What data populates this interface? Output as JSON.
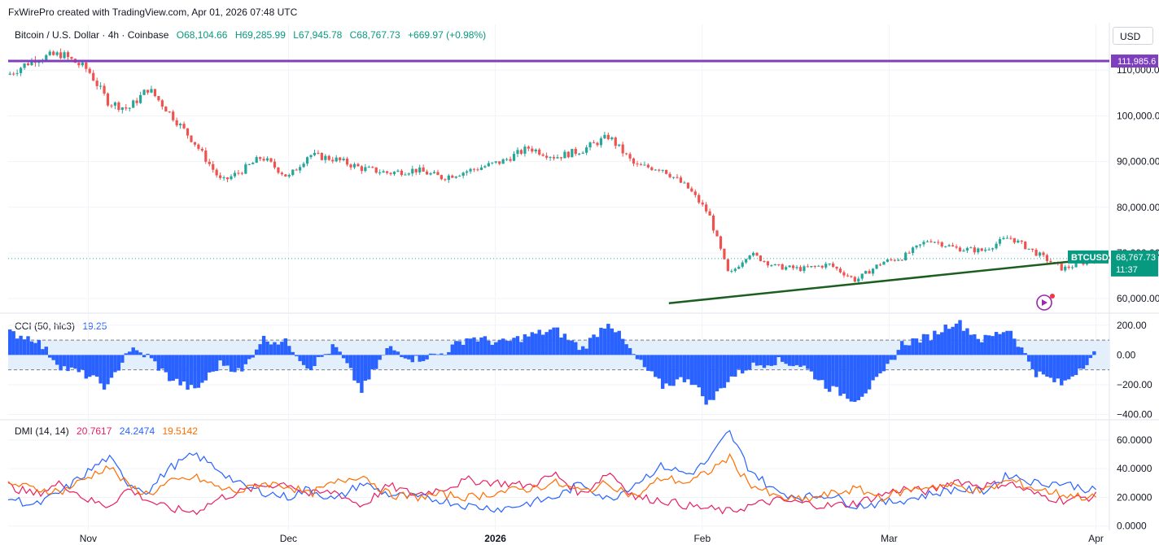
{
  "header": {
    "credit": "FxWirePro created with TradingView.com, Apr 01, 2026 07:48 UTC",
    "currency_button": "USD"
  },
  "symbol_legend": {
    "name": "Bitcoin / U.S. Dollar · 4h · Coinbase",
    "open": "O68,104.66",
    "high": "H69,285.99",
    "low": "L67,945.78",
    "close": "C68,767.73",
    "change": "+669.97 (+0.98%)"
  },
  "cci_legend": {
    "name": "CCI (50, hlc3)",
    "value": "19.25"
  },
  "dmi_legend": {
    "name": "DMI (14, 14)",
    "plus_di": "20.7617",
    "minus_di": "24.2474",
    "adx": "19.5142"
  },
  "colors": {
    "up": "#26a69a",
    "down": "#ef5350",
    "resistance": "#7e3fbf",
    "trendline": "#1b5e20",
    "cci": "#2962ff",
    "cci_band": "#e3f0fb",
    "plus_di": "#e91e63",
    "minus_di": "#2962ff",
    "adx": "#ff6d00",
    "price_label_bg": "#089981"
  },
  "price_tags": {
    "resistance": "111,985.6",
    "symbol": "BTCUSD",
    "last": "68,767.73",
    "countdown": "11:37"
  },
  "chart_data": [
    {
      "type": "candlestick",
      "pane": "price",
      "title": "Bitcoin / U.S. Dollar · 4h · Coinbase",
      "x_labels": [
        "Nov",
        "Dec",
        "2026",
        "Feb",
        "Mar",
        "Apr"
      ],
      "y_ticks": [
        "110,000.00",
        "100,000.00",
        "90,000.00",
        "80,000.00",
        "70,000.00",
        "60,000.00"
      ],
      "y_tick_values": [
        110000,
        100000,
        90000,
        80000,
        70000,
        60000
      ],
      "ylim": [
        57000,
        120000
      ],
      "close_path": {
        "dates": [
          "2025-10-20",
          "2025-10-24",
          "2025-10-28",
          "2025-11-01",
          "2025-11-04",
          "2025-11-07",
          "2025-11-10",
          "2025-11-13",
          "2025-11-17",
          "2025-11-21",
          "2025-11-24",
          "2025-11-27",
          "2025-12-01",
          "2025-12-04",
          "2025-12-08",
          "2025-12-12",
          "2025-12-16",
          "2025-12-20",
          "2025-12-24",
          "2025-12-28",
          "2026-01-02",
          "2026-01-06",
          "2026-01-10",
          "2026-01-14",
          "2026-01-18",
          "2026-01-22",
          "2026-01-26",
          "2026-01-30",
          "2026-02-02",
          "2026-02-05",
          "2026-02-08",
          "2026-02-12",
          "2026-02-16",
          "2026-02-20",
          "2026-02-24",
          "2026-02-28",
          "2026-03-03",
          "2026-03-07",
          "2026-03-11",
          "2026-03-15",
          "2026-03-19",
          "2026-03-23",
          "2026-03-27",
          "2026-04-01"
        ],
        "close": [
          109000,
          112500,
          113500,
          110000,
          103000,
          101500,
          106000,
          101000,
          94000,
          85500,
          88000,
          91000,
          86500,
          91500,
          90500,
          88500,
          87500,
          88200,
          86500,
          88000,
          90000,
          93000,
          91000,
          92500,
          95500,
          89000,
          88500,
          84000,
          78500,
          65000,
          70000,
          67000,
          66500,
          67500,
          64000,
          68000,
          69000,
          73000,
          71000,
          70500,
          73500,
          70000,
          66500,
          68767.73
        ]
      },
      "last_close": 68767.73,
      "annotations": [
        {
          "type": "horizontal_line",
          "y": 111985.6,
          "label": "111,985.6"
        },
        {
          "type": "trendline",
          "from": {
            "date": "2026-01-27",
            "y": 59000
          },
          "to": {
            "date": "2026-04-03",
            "y": 69000
          }
        }
      ]
    },
    {
      "type": "histogram",
      "pane": "cci",
      "name": "CCI (50, hlc3)",
      "y_ticks": [
        "200.00",
        "0.00",
        "−200.00",
        "−400.00"
      ],
      "y_tick_values": [
        200,
        0,
        -200,
        -400
      ],
      "band": [
        -100,
        100
      ],
      "ylim": [
        -430,
        270
      ],
      "dates": [
        "2025-10-20",
        "2025-10-24",
        "2025-10-28",
        "2025-11-01",
        "2025-11-04",
        "2025-11-07",
        "2025-11-10",
        "2025-11-13",
        "2025-11-17",
        "2025-11-21",
        "2025-11-24",
        "2025-11-27",
        "2025-12-01",
        "2025-12-04",
        "2025-12-08",
        "2025-12-12",
        "2025-12-16",
        "2025-12-20",
        "2025-12-24",
        "2025-12-28",
        "2026-01-02",
        "2026-01-06",
        "2026-01-10",
        "2026-01-14",
        "2026-01-18",
        "2026-01-22",
        "2026-01-26",
        "2026-01-30",
        "2026-02-02",
        "2026-02-05",
        "2026-02-08",
        "2026-02-12",
        "2026-02-16",
        "2026-02-20",
        "2026-02-24",
        "2026-02-28",
        "2026-03-03",
        "2026-03-07",
        "2026-03-11",
        "2026-03-15",
        "2026-03-19",
        "2026-03-23",
        "2026-03-27",
        "2026-04-01"
      ],
      "values": [
        150,
        110,
        -80,
        -140,
        -220,
        40,
        -10,
        -150,
        -240,
        -50,
        -120,
        110,
        80,
        -90,
        60,
        -240,
        50,
        -30,
        10,
        120,
        80,
        130,
        170,
        40,
        230,
        -20,
        -210,
        -150,
        -330,
        -160,
        -80,
        -40,
        -70,
        -220,
        -300,
        -140,
        80,
        120,
        230,
        100,
        180,
        -120,
        -200,
        19.25
      ]
    },
    {
      "type": "line",
      "pane": "dmi",
      "name": "DMI (14, 14)",
      "y_ticks": [
        "60.0000",
        "40.0000",
        "20.0000",
        "0.0000"
      ],
      "y_tick_values": [
        60,
        40,
        20,
        0
      ],
      "ylim": [
        -3,
        73
      ],
      "dates": [
        "2025-10-20",
        "2025-10-24",
        "2025-10-28",
        "2025-11-01",
        "2025-11-04",
        "2025-11-07",
        "2025-11-10",
        "2025-11-13",
        "2025-11-17",
        "2025-11-21",
        "2025-11-24",
        "2025-11-27",
        "2025-12-01",
        "2025-12-04",
        "2025-12-08",
        "2025-12-12",
        "2025-12-16",
        "2025-12-20",
        "2025-12-24",
        "2025-12-28",
        "2026-01-02",
        "2026-01-06",
        "2026-01-10",
        "2026-01-14",
        "2026-01-18",
        "2026-01-22",
        "2026-01-26",
        "2026-01-30",
        "2026-02-02",
        "2026-02-05",
        "2026-02-08",
        "2026-02-12",
        "2026-02-16",
        "2026-02-20",
        "2026-02-24",
        "2026-02-28",
        "2026-03-03",
        "2026-03-07",
        "2026-03-11",
        "2026-03-15",
        "2026-03-19",
        "2026-03-23",
        "2026-03-27",
        "2026-04-01"
      ],
      "series": [
        {
          "name": "+DI",
          "values": [
            28,
            22,
            30,
            18,
            14,
            26,
            18,
            12,
            10,
            20,
            24,
            28,
            30,
            22,
            24,
            14,
            28,
            22,
            26,
            32,
            30,
            28,
            36,
            22,
            38,
            20,
            18,
            14,
            12,
            10,
            14,
            18,
            16,
            14,
            16,
            22,
            26,
            24,
            32,
            28,
            30,
            22,
            18,
            20.7617
          ]
        },
        {
          "name": "−DI",
          "values": [
            20,
            14,
            24,
            38,
            48,
            30,
            24,
            40,
            50,
            38,
            28,
            24,
            20,
            26,
            18,
            30,
            22,
            20,
            18,
            14,
            12,
            16,
            20,
            30,
            18,
            30,
            42,
            36,
            46,
            66,
            40,
            24,
            20,
            22,
            14,
            16,
            18,
            22,
            26,
            24,
            36,
            30,
            30,
            24.2474
          ]
        },
        {
          "name": "ADX",
          "values": [
            30,
            26,
            24,
            34,
            42,
            28,
            22,
            30,
            34,
            26,
            24,
            30,
            28,
            22,
            30,
            36,
            22,
            20,
            22,
            20,
            24,
            26,
            30,
            24,
            30,
            20,
            34,
            30,
            38,
            48,
            30,
            20,
            18,
            22,
            26,
            20,
            24,
            28,
            28,
            24,
            32,
            26,
            22,
            19.5142
          ]
        }
      ]
    }
  ]
}
